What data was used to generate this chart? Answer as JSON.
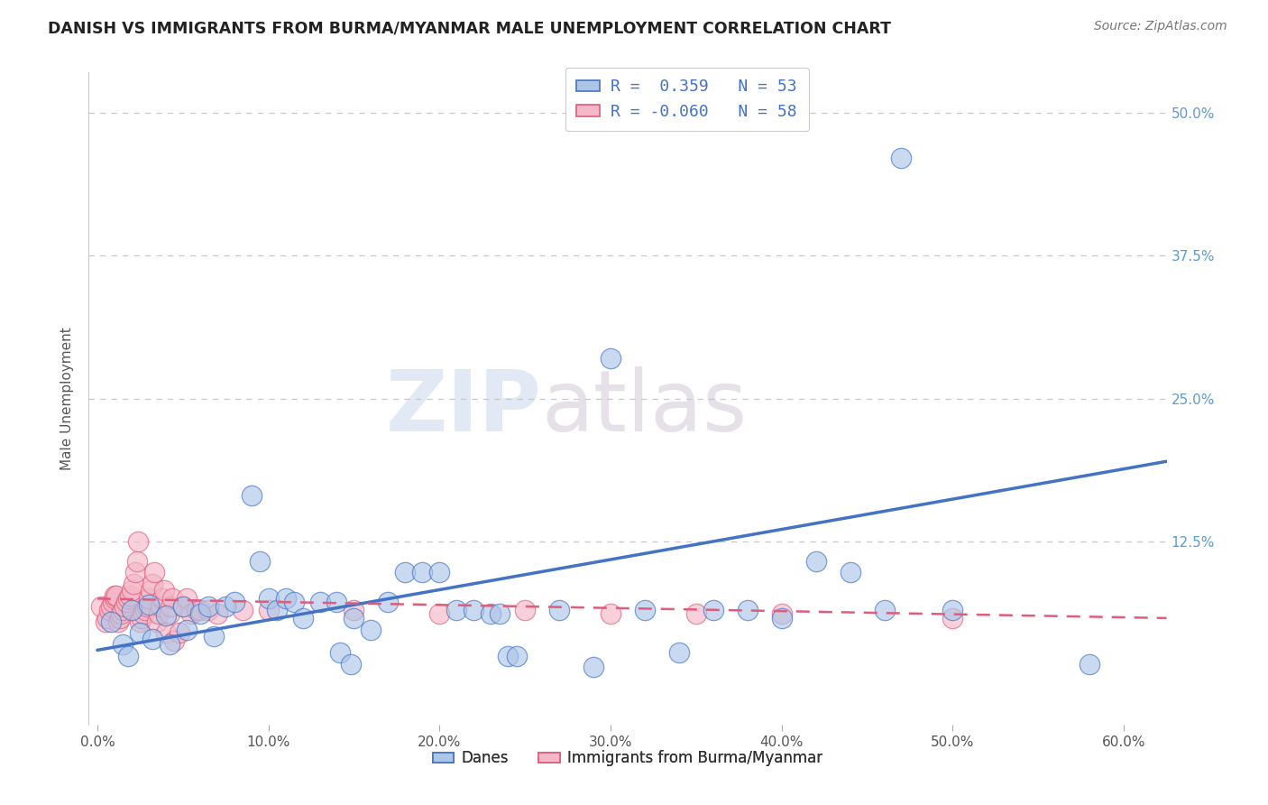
{
  "title": "DANISH VS IMMIGRANTS FROM BURMA/MYANMAR MALE UNEMPLOYMENT CORRELATION CHART",
  "source": "Source: ZipAtlas.com",
  "ylabel": "Male Unemployment",
  "xlabel_ticks": [
    "0.0%",
    "10.0%",
    "20.0%",
    "30.0%",
    "40.0%",
    "50.0%",
    "60.0%"
  ],
  "xlabel_vals": [
    0.0,
    0.1,
    0.2,
    0.3,
    0.4,
    0.5,
    0.6
  ],
  "ylabel_ticks": [
    "12.5%",
    "25.0%",
    "37.5%",
    "50.0%"
  ],
  "ylabel_vals": [
    0.125,
    0.25,
    0.375,
    0.5
  ],
  "xlim": [
    -0.005,
    0.625
  ],
  "ylim": [
    -0.035,
    0.535
  ],
  "legend_entries": [
    {
      "label": "Danes",
      "color": "#a8c4e0",
      "R": "0.359",
      "N": "53"
    },
    {
      "label": "Immigrants from Burma/Myanmar",
      "color": "#f4a7b9",
      "R": "-0.060",
      "N": "58"
    }
  ],
  "danes_scatter": [
    [
      0.008,
      0.055
    ],
    [
      0.015,
      0.035
    ],
    [
      0.018,
      0.025
    ],
    [
      0.02,
      0.065
    ],
    [
      0.025,
      0.045
    ],
    [
      0.03,
      0.07
    ],
    [
      0.032,
      0.04
    ],
    [
      0.04,
      0.06
    ],
    [
      0.042,
      0.035
    ],
    [
      0.05,
      0.068
    ],
    [
      0.052,
      0.048
    ],
    [
      0.06,
      0.062
    ],
    [
      0.065,
      0.068
    ],
    [
      0.068,
      0.042
    ],
    [
      0.075,
      0.068
    ],
    [
      0.08,
      0.072
    ],
    [
      0.09,
      0.165
    ],
    [
      0.095,
      0.108
    ],
    [
      0.1,
      0.075
    ],
    [
      0.105,
      0.065
    ],
    [
      0.11,
      0.075
    ],
    [
      0.115,
      0.072
    ],
    [
      0.12,
      0.058
    ],
    [
      0.13,
      0.072
    ],
    [
      0.14,
      0.072
    ],
    [
      0.142,
      0.028
    ],
    [
      0.148,
      0.018
    ],
    [
      0.15,
      0.058
    ],
    [
      0.16,
      0.048
    ],
    [
      0.17,
      0.072
    ],
    [
      0.18,
      0.098
    ],
    [
      0.19,
      0.098
    ],
    [
      0.2,
      0.098
    ],
    [
      0.21,
      0.065
    ],
    [
      0.22,
      0.065
    ],
    [
      0.23,
      0.062
    ],
    [
      0.235,
      0.062
    ],
    [
      0.24,
      0.025
    ],
    [
      0.245,
      0.025
    ],
    [
      0.27,
      0.065
    ],
    [
      0.29,
      0.015
    ],
    [
      0.3,
      0.285
    ],
    [
      0.32,
      0.065
    ],
    [
      0.34,
      0.028
    ],
    [
      0.36,
      0.065
    ],
    [
      0.38,
      0.065
    ],
    [
      0.4,
      0.058
    ],
    [
      0.42,
      0.108
    ],
    [
      0.44,
      0.098
    ],
    [
      0.46,
      0.065
    ],
    [
      0.47,
      0.46
    ],
    [
      0.5,
      0.065
    ],
    [
      0.58,
      0.018
    ]
  ],
  "burma_scatter": [
    [
      0.002,
      0.068
    ],
    [
      0.005,
      0.055
    ],
    [
      0.006,
      0.058
    ],
    [
      0.007,
      0.065
    ],
    [
      0.008,
      0.068
    ],
    [
      0.009,
      0.072
    ],
    [
      0.01,
      0.075
    ],
    [
      0.01,
      0.078
    ],
    [
      0.011,
      0.078
    ],
    [
      0.012,
      0.055
    ],
    [
      0.013,
      0.058
    ],
    [
      0.014,
      0.062
    ],
    [
      0.015,
      0.065
    ],
    [
      0.016,
      0.068
    ],
    [
      0.017,
      0.072
    ],
    [
      0.018,
      0.075
    ],
    [
      0.019,
      0.078
    ],
    [
      0.02,
      0.082
    ],
    [
      0.021,
      0.088
    ],
    [
      0.022,
      0.098
    ],
    [
      0.023,
      0.108
    ],
    [
      0.024,
      0.125
    ],
    [
      0.025,
      0.055
    ],
    [
      0.026,
      0.058
    ],
    [
      0.027,
      0.062
    ],
    [
      0.028,
      0.065
    ],
    [
      0.029,
      0.068
    ],
    [
      0.03,
      0.075
    ],
    [
      0.031,
      0.082
    ],
    [
      0.032,
      0.088
    ],
    [
      0.033,
      0.098
    ],
    [
      0.035,
      0.055
    ],
    [
      0.036,
      0.062
    ],
    [
      0.037,
      0.068
    ],
    [
      0.038,
      0.075
    ],
    [
      0.039,
      0.082
    ],
    [
      0.04,
      0.045
    ],
    [
      0.042,
      0.062
    ],
    [
      0.043,
      0.068
    ],
    [
      0.044,
      0.075
    ],
    [
      0.045,
      0.038
    ],
    [
      0.048,
      0.045
    ],
    [
      0.05,
      0.068
    ],
    [
      0.052,
      0.075
    ],
    [
      0.055,
      0.062
    ],
    [
      0.058,
      0.065
    ],
    [
      0.06,
      0.065
    ],
    [
      0.065,
      0.065
    ],
    [
      0.07,
      0.062
    ],
    [
      0.085,
      0.065
    ],
    [
      0.1,
      0.065
    ],
    [
      0.15,
      0.065
    ],
    [
      0.2,
      0.062
    ],
    [
      0.25,
      0.065
    ],
    [
      0.3,
      0.062
    ],
    [
      0.35,
      0.062
    ],
    [
      0.4,
      0.062
    ],
    [
      0.5,
      0.058
    ]
  ],
  "danes_line_x": [
    0.0,
    0.625
  ],
  "danes_line_y": [
    0.03,
    0.195
  ],
  "burma_line_x": [
    0.0,
    0.625
  ],
  "burma_line_y": [
    0.075,
    0.058
  ],
  "danes_color": "#4472c4",
  "danes_scatter_color": "#adc6e8",
  "burma_color": "#e05c7a",
  "burma_scatter_color": "#f4b8c8",
  "watermark_zip": "ZIP",
  "watermark_atlas": "atlas",
  "background_color": "#ffffff",
  "grid_color": "#c8c8c8",
  "grid_style": "--"
}
